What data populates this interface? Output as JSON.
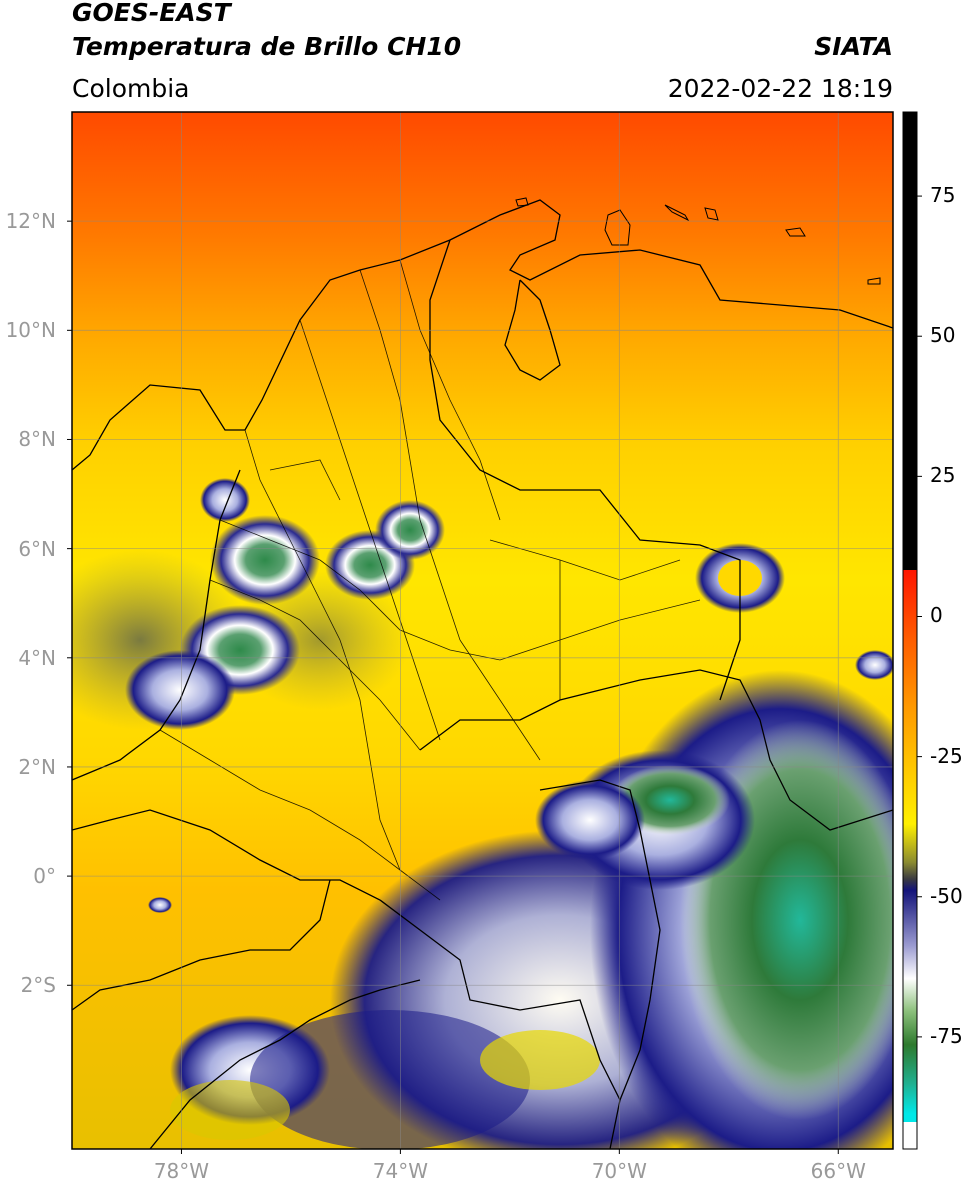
{
  "header": {
    "title_line1": "GOES-EAST",
    "title_line2": "Temperatura de Brillo CH10",
    "organization": "SIATA",
    "region": "Colombia",
    "datetime": "2022-02-22 18:19"
  },
  "map": {
    "lat_labels": [
      "12°N",
      "10°N",
      "8°N",
      "6°N",
      "4°N",
      "2°N",
      "0°",
      "2°S"
    ],
    "lon_labels": [
      "78°W",
      "74°W",
      "70°W",
      "66°W"
    ],
    "lat_ticks": [
      12,
      10,
      8,
      6,
      4,
      2,
      0,
      -2
    ],
    "lon_ticks": [
      -78,
      -74,
      -70,
      -66
    ],
    "lat_range": [
      -5.0,
      14.0
    ],
    "lon_range": [
      -80.0,
      -65.0
    ],
    "grid": true
  },
  "colorbar": {
    "tick_labels": [
      "75",
      "50",
      "25",
      "0",
      "-25",
      "-50",
      "-75"
    ],
    "ticks": [
      75,
      50,
      25,
      0,
      -25,
      -50,
      -75
    ],
    "range": [
      -95,
      90
    ],
    "colors": {
      "warm_above_8": "#000000",
      "red": "#ff1a00",
      "orange": "#ff9900",
      "yellow": "#ffee00",
      "olive": "#7f7f2a",
      "navy": "#1a1a80",
      "white": "#ffffff",
      "green": "#2e7a2e",
      "teal": "#20c0a0",
      "cyan": "#00e0e0"
    }
  }
}
